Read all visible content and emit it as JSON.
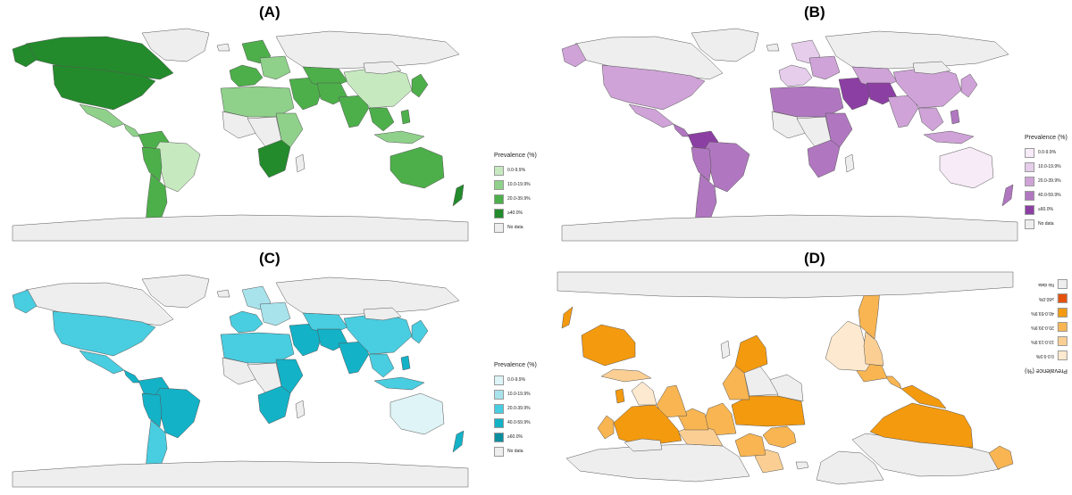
{
  "panels": [
    {
      "label": "(A)",
      "legend_title": "Prevalence (%)",
      "legend": [
        {
          "label": "0.0-9.9%",
          "color": "#c7e9c0"
        },
        {
          "label": "10.0-19.9%",
          "color": "#8fd18a"
        },
        {
          "label": "20.0-39.9%",
          "color": "#4daf4a"
        },
        {
          "label": "≥40.0%",
          "color": "#238b2c"
        },
        {
          "label": "No data",
          "color": "#eeeeee"
        }
      ]
    },
    {
      "label": "(B)",
      "legend_title": "Prevalence (%)",
      "legend": [
        {
          "label": "0.0-9.9%",
          "color": "#f7ebf7"
        },
        {
          "label": "10.0-19.9%",
          "color": "#e6cdeb"
        },
        {
          "label": "20.0-39.9%",
          "color": "#cfa3d8"
        },
        {
          "label": "40.0-59.9%",
          "color": "#b077c0"
        },
        {
          "label": "≥60.0%",
          "color": "#8c3fa3"
        },
        {
          "label": "No data",
          "color": "#eeeeee"
        }
      ]
    },
    {
      "label": "(C)",
      "legend_title": "Prevalence (%)",
      "legend": [
        {
          "label": "0.0-9.9%",
          "color": "#def4f7"
        },
        {
          "label": "10.0-19.9%",
          "color": "#a8e3ec"
        },
        {
          "label": "20.0-39.9%",
          "color": "#49cde0"
        },
        {
          "label": "40.0-59.9%",
          "color": "#13b2c7"
        },
        {
          "label": "≥60.0%",
          "color": "#0b8f9f"
        },
        {
          "label": "No data",
          "color": "#eeeeee"
        }
      ]
    },
    {
      "label": "(D)",
      "legend_title": "Prevalence (%)",
      "legend": [
        {
          "label": "0.0-9.9%",
          "color": "#fde9cf"
        },
        {
          "label": "10.0-19.9%",
          "color": "#fbcf93"
        },
        {
          "label": "20.0-39.9%",
          "color": "#f8b552"
        },
        {
          "label": "40.0-59.9%",
          "color": "#f49a0f"
        },
        {
          "label": "≥60.0%",
          "color": "#e4510b"
        },
        {
          "label": "No data",
          "color": "#eeeeee"
        }
      ]
    }
  ],
  "ocean_color": "#ffffff",
  "border_color": "#555555"
}
